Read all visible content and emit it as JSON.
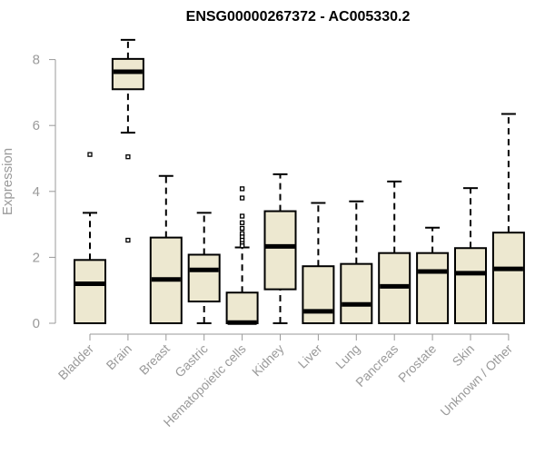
{
  "chart_data": {
    "type": "boxplot",
    "title": "ENSG00000267372 - AC005330.2",
    "xlabel": "",
    "ylabel": "Expression",
    "ylim": [
      0,
      8.7
    ],
    "yticks": [
      0,
      2,
      4,
      6,
      8
    ],
    "grid": false,
    "box_fill": "#ede8d0",
    "box_stroke": "#000000",
    "axis_color": "#9a9a9a",
    "categories": [
      "Bladder",
      "Brain",
      "Breast",
      "Gastric",
      "Hematopoietic cells",
      "Kidney",
      "Liver",
      "Lung",
      "Pancreas",
      "Prostate",
      "Skin",
      "Unknown / Other"
    ],
    "boxes": [
      {
        "min": 0,
        "q1": 0,
        "median": 1.2,
        "q3": 1.92,
        "max": 3.35,
        "outliers": [
          5.12
        ]
      },
      {
        "min": 5.78,
        "q1": 7.1,
        "median": 7.63,
        "q3": 8.02,
        "max": 8.6,
        "outliers": [
          5.05,
          2.52
        ]
      },
      {
        "min": 0,
        "q1": 0,
        "median": 1.33,
        "q3": 2.6,
        "max": 4.47,
        "outliers": []
      },
      {
        "min": 0,
        "q1": 0.66,
        "median": 1.62,
        "q3": 2.08,
        "max": 3.35,
        "outliers": []
      },
      {
        "min": 0,
        "q1": 0,
        "median": 0.02,
        "q3": 0.93,
        "max": 2.3,
        "outliers": [
          4.08,
          3.8,
          3.25,
          3.05,
          2.88,
          2.72,
          2.62,
          2.52,
          2.42,
          2.35
        ]
      },
      {
        "min": 0,
        "q1": 1.03,
        "median": 2.33,
        "q3": 3.4,
        "max": 4.52,
        "outliers": []
      },
      {
        "min": 0,
        "q1": 0,
        "median": 0.36,
        "q3": 1.73,
        "max": 3.65,
        "outliers": []
      },
      {
        "min": 0,
        "q1": 0,
        "median": 0.57,
        "q3": 1.8,
        "max": 3.7,
        "outliers": []
      },
      {
        "min": 0,
        "q1": 0,
        "median": 1.12,
        "q3": 2.13,
        "max": 4.3,
        "outliers": []
      },
      {
        "min": 0,
        "q1": 0,
        "median": 1.57,
        "q3": 2.13,
        "max": 2.9,
        "outliers": []
      },
      {
        "min": 0,
        "q1": 0,
        "median": 1.52,
        "q3": 2.28,
        "max": 4.1,
        "outliers": []
      },
      {
        "min": 0,
        "q1": 0,
        "median": 1.65,
        "q3": 2.75,
        "max": 6.35,
        "outliers": []
      }
    ]
  }
}
